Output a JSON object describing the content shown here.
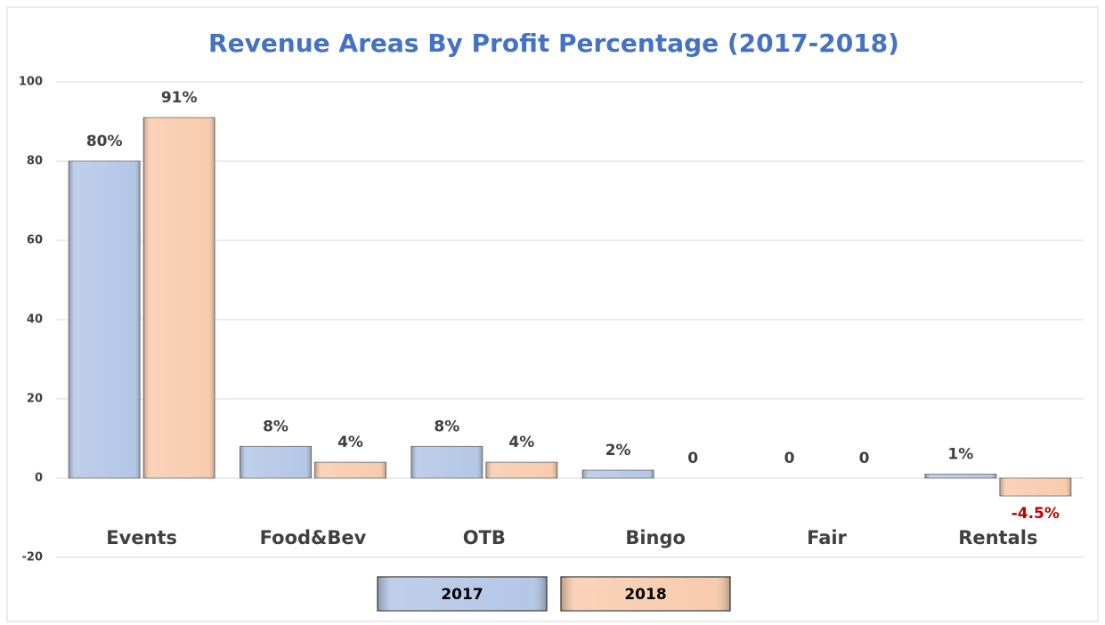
{
  "chart_data": {
    "type": "bar",
    "title": "Revenue Areas By Profit Percentage (2017-2018)",
    "categories": [
      "Events",
      "Food&Bev",
      "OTB",
      "Bingo",
      "Fair",
      "Rentals"
    ],
    "series": [
      {
        "name": "2017",
        "color": "#b4c7e7",
        "values": [
          80,
          8,
          8,
          2,
          0,
          1
        ],
        "value_labels": [
          "80%",
          "8%",
          "8%",
          "2%",
          "0",
          "1%"
        ]
      },
      {
        "name": "2018",
        "color": "#f8cbad",
        "values": [
          91,
          4,
          4,
          0,
          0,
          -4.5
        ],
        "value_labels": [
          "91%",
          "4%",
          "4%",
          "0",
          "0",
          "-4.5%"
        ]
      }
    ],
    "negative_label_color": "#c00000",
    "ylim": [
      -20,
      100
    ],
    "yticks": [
      -20,
      0,
      20,
      40,
      60,
      80,
      100
    ],
    "grid": true,
    "legend": "bottom"
  }
}
